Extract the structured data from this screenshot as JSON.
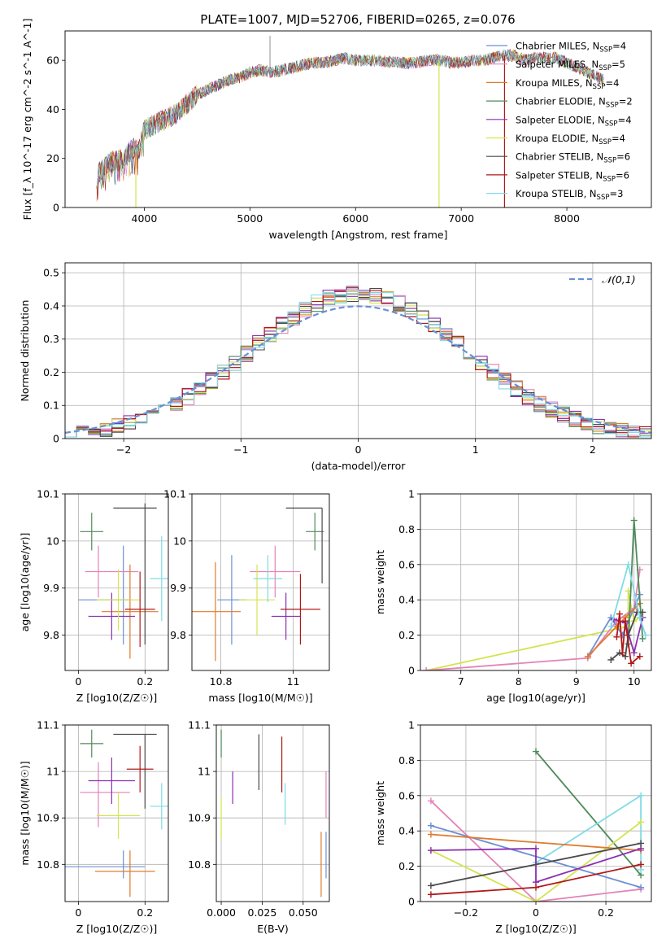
{
  "figure": {
    "title": "PLATE=1007, MJD=52706, FIBERID=0265, z=0.076"
  },
  "models": [
    {
      "id": "chab_miles",
      "label": "Chabrier MILES, N",
      "sub": "SSP",
      "n": "=4",
      "color": "#6b8fd6"
    },
    {
      "id": "salp_miles",
      "label": "Salpeter MILES, N",
      "sub": "SSP",
      "n": "=5",
      "color": "#e383b8"
    },
    {
      "id": "krou_miles",
      "label": "Kroupa MILES, N",
      "sub": "SSP",
      "n": "=4",
      "color": "#e07b2c"
    },
    {
      "id": "chab_elodie",
      "label": "Chabrier ELODIE, N",
      "sub": "SSP",
      "n": "=2",
      "color": "#4e8a5a"
    },
    {
      "id": "salp_elodie",
      "label": "Salpeter ELODIE, N",
      "sub": "SSP",
      "n": "=4",
      "color": "#8b2fb0"
    },
    {
      "id": "krou_elodie",
      "label": "Kroupa ELODIE, N",
      "sub": "SSP",
      "n": "=4",
      "color": "#d3e44e"
    },
    {
      "id": "chab_stelib",
      "label": "Chabrier STELIB, N",
      "sub": "SSP",
      "n": "=6",
      "color": "#4a4a4a"
    },
    {
      "id": "salp_stelib",
      "label": "Salpeter STELIB, N",
      "sub": "SSP",
      "n": "=6",
      "color": "#b01818"
    },
    {
      "id": "krou_stelib",
      "label": "Kroupa STELIB, N",
      "sub": "SSP",
      "n": "=3",
      "color": "#7fdbe6"
    }
  ],
  "chart_data": [
    {
      "type": "line",
      "panel": "spectrum",
      "xlabel": "wavelength [Angstrom, rest frame]",
      "ylabel": "Flux [f_λ 10^-17 erg cm^-2 s^-1 A^-1]",
      "xlim": [
        3250,
        8800
      ],
      "ylim": [
        0,
        72
      ],
      "xticks": [
        4000,
        5000,
        6000,
        7000,
        8000
      ],
      "yticks": [
        0,
        20,
        40,
        60
      ],
      "legend": "top-right",
      "grid": false,
      "continuum": [
        [
          3550,
          13
        ],
        [
          3650,
          18
        ],
        [
          3800,
          20
        ],
        [
          3900,
          24
        ],
        [
          3950,
          23
        ],
        [
          4000,
          32
        ],
        [
          4100,
          34
        ],
        [
          4200,
          36
        ],
        [
          4300,
          38
        ],
        [
          4400,
          42
        ],
        [
          4500,
          46
        ],
        [
          4600,
          48
        ],
        [
          4700,
          50
        ],
        [
          4800,
          52
        ],
        [
          4900,
          53
        ],
        [
          5000,
          55
        ],
        [
          5100,
          56
        ],
        [
          5200,
          55
        ],
        [
          5300,
          56
        ],
        [
          5400,
          57
        ],
        [
          5500,
          58
        ],
        [
          5600,
          59
        ],
        [
          5700,
          59
        ],
        [
          5800,
          60
        ],
        [
          5900,
          61
        ],
        [
          6000,
          60
        ],
        [
          6200,
          60
        ],
        [
          6400,
          59
        ],
        [
          6563,
          59
        ],
        [
          6700,
          60
        ],
        [
          6800,
          60
        ],
        [
          6900,
          59
        ],
        [
          7000,
          59
        ],
        [
          7100,
          60
        ],
        [
          7200,
          60
        ],
        [
          7300,
          61
        ],
        [
          7400,
          62
        ],
        [
          7500,
          62
        ],
        [
          7600,
          60
        ],
        [
          7700,
          61
        ],
        [
          7800,
          61
        ],
        [
          7900,
          61
        ],
        [
          8000,
          59
        ],
        [
          8100,
          57
        ],
        [
          8200,
          55
        ],
        [
          8300,
          53
        ],
        [
          8350,
          52
        ]
      ],
      "spikes": [
        {
          "x": 5190,
          "y": 70
        }
      ],
      "drops": [
        {
          "x": 3920,
          "model": "krou_elodie"
        },
        {
          "x": 6790,
          "model": "krou_elodie"
        },
        {
          "x": 7410,
          "model": "salp_stelib"
        }
      ]
    },
    {
      "type": "area",
      "panel": "residuals",
      "xlabel": "(data-model)/error",
      "ylabel": "Normed distribution",
      "xlim": [
        -2.5,
        2.5
      ],
      "ylim": [
        0,
        0.53
      ],
      "xticks": [
        -2,
        -1,
        0,
        1,
        2
      ],
      "yticks": [
        0.0,
        0.1,
        0.2,
        0.3,
        0.4,
        0.5
      ],
      "grid": true,
      "legend": "top-right",
      "reference": {
        "label": "𝒩(0,1)",
        "mu": 0,
        "sigma": 1,
        "color": "#6890d8"
      },
      "bin_width": 0.1
    },
    {
      "type": "scatter",
      "panel": "age_vs_Z",
      "xlabel": "Z [log10(Z/Z☉)]",
      "ylabel": "age [log10(age/yr)]",
      "xlim": [
        -0.04,
        0.27
      ],
      "ylim": [
        9.725,
        10.1
      ],
      "xticks": [
        0.0,
        0.2
      ],
      "yticks": [
        9.8,
        9.9,
        10.0,
        10.1
      ],
      "grid": true,
      "points": [
        {
          "model": "chab_miles",
          "x": 0.08,
          "xerr": 0.08,
          "y": 9.875,
          "yerr": 0.0
        },
        {
          "model": "chab_miles",
          "x": 0.135,
          "xerr": 0.0,
          "y": 9.885,
          "yerr": 0.105
        },
        {
          "model": "salp_miles",
          "x": 0.1,
          "xerr": 0.08,
          "y": 9.935,
          "yerr": 0.0
        },
        {
          "model": "salp_miles",
          "x": 0.06,
          "xerr": 0.0,
          "y": 9.935,
          "yerr": 0.055
        },
        {
          "model": "krou_miles",
          "x": 0.155,
          "xerr": 0.085,
          "y": 9.85,
          "yerr": 0.0
        },
        {
          "model": "krou_miles",
          "x": 0.155,
          "xerr": 0.0,
          "y": 9.85,
          "yerr": 0.1
        },
        {
          "model": "chab_elodie",
          "x": 0.04,
          "xerr": 0.035,
          "y": 10.02,
          "yerr": 0.04
        },
        {
          "model": "salp_elodie",
          "x": 0.1,
          "xerr": 0.07,
          "y": 9.84,
          "yerr": 0.05
        },
        {
          "model": "krou_elodie",
          "x": 0.12,
          "xerr": 0.065,
          "y": 9.875,
          "yerr": 0.065
        },
        {
          "model": "chab_stelib",
          "x": 0.2,
          "xerr": 0.0,
          "y": 9.93,
          "yerr": 0.15
        },
        {
          "model": "chab_stelib",
          "x": 0.17,
          "xerr": 0.065,
          "y": 10.07,
          "yerr": 0.0
        },
        {
          "model": "salp_stelib",
          "x": 0.185,
          "xerr": 0.045,
          "y": 9.855,
          "yerr": 0.08
        },
        {
          "model": "krou_stelib",
          "x": 0.25,
          "xerr": 0.035,
          "y": 9.92,
          "yerr": 0.09
        }
      ]
    },
    {
      "type": "scatter",
      "panel": "age_vs_mass",
      "xlabel": "mass [log10(M/M☉)]",
      "ylabel": "",
      "xlim": [
        10.72,
        11.1
      ],
      "ylim": [
        9.725,
        10.1
      ],
      "xticks": [
        10.8,
        11.0
      ],
      "yticks": [
        9.8,
        9.9,
        10.0,
        10.1
      ],
      "grid": true,
      "points": [
        {
          "model": "chab_miles",
          "x": 10.83,
          "xerr": 0.04,
          "y": 9.875,
          "yerr": 0.095
        },
        {
          "model": "salp_miles",
          "x": 10.95,
          "xerr": 0.07,
          "y": 9.935,
          "yerr": 0.055
        },
        {
          "model": "krou_miles",
          "x": 10.785,
          "xerr": 0.07,
          "y": 9.85,
          "yerr": 0.105
        },
        {
          "model": "chab_elodie",
          "x": 11.06,
          "xerr": 0.025,
          "y": 10.02,
          "yerr": 0.04
        },
        {
          "model": "salp_elodie",
          "x": 10.98,
          "xerr": 0.04,
          "y": 9.84,
          "yerr": 0.05
        },
        {
          "model": "krou_elodie",
          "x": 10.9,
          "xerr": 0.05,
          "y": 9.875,
          "yerr": 0.075
        },
        {
          "model": "chab_stelib",
          "x": 11.08,
          "xerr": 0.0,
          "y": 9.99,
          "yerr": 0.08
        },
        {
          "model": "chab_stelib",
          "x": 11.03,
          "xerr": 0.05,
          "y": 10.07,
          "yerr": 0.0
        },
        {
          "model": "salp_stelib",
          "x": 11.02,
          "xerr": 0.055,
          "y": 9.855,
          "yerr": 0.075
        },
        {
          "model": "krou_stelib",
          "x": 10.93,
          "xerr": 0.04,
          "y": 9.92,
          "yerr": 0.05
        }
      ]
    },
    {
      "type": "line",
      "panel": "weight_vs_age",
      "xlabel": "age  [log10(age/yr)]",
      "ylabel": "mass weight",
      "xlim": [
        6.3,
        10.3
      ],
      "ylim": [
        0,
        1.0
      ],
      "xticks": [
        7,
        8,
        9,
        10
      ],
      "yticks": [
        0.0,
        0.2,
        0.4,
        0.6,
        0.8,
        1.0
      ],
      "grid": true,
      "series": [
        {
          "model": "krou_elodie",
          "x": [
            6.4,
            9.9,
            9.9,
            10.0,
            10.1
          ],
          "y": [
            0.0,
            0.25,
            0.45,
            0.28,
            0.3
          ]
        },
        {
          "model": "salp_miles",
          "x": [
            6.4,
            9.2,
            9.7,
            10.0,
            10.1
          ],
          "y": [
            0.0,
            0.07,
            0.28,
            0.35,
            0.57
          ]
        },
        {
          "model": "chab_miles",
          "x": [
            9.2,
            9.6,
            9.8,
            10.1
          ],
          "y": [
            0.08,
            0.3,
            0.2,
            0.43
          ]
        },
        {
          "model": "krou_miles",
          "x": [
            9.2,
            9.7,
            9.85,
            10.1
          ],
          "y": [
            0.08,
            0.25,
            0.3,
            0.38
          ]
        },
        {
          "model": "chab_elodie",
          "x": [
            9.9,
            10.0,
            10.15
          ],
          "y": [
            0.15,
            0.85,
            0.18
          ]
        },
        {
          "model": "salp_elodie",
          "x": [
            9.65,
            9.85,
            10.0,
            10.15
          ],
          "y": [
            0.29,
            0.27,
            0.1,
            0.3
          ]
        },
        {
          "model": "chab_stelib",
          "x": [
            9.6,
            9.75,
            9.85,
            9.9,
            10.05,
            10.15
          ],
          "y": [
            0.06,
            0.1,
            0.08,
            0.2,
            0.33,
            0.33
          ]
        },
        {
          "model": "salp_stelib",
          "x": [
            9.7,
            9.75,
            9.8,
            9.85,
            9.95,
            10.1
          ],
          "y": [
            0.19,
            0.32,
            0.1,
            0.28,
            0.04,
            0.08
          ]
        },
        {
          "model": "krou_stelib",
          "x": [
            9.6,
            9.9,
            10.1,
            10.2
          ],
          "y": [
            0.25,
            0.6,
            0.3,
            0.2
          ]
        }
      ]
    },
    {
      "type": "scatter",
      "panel": "mass_vs_Z",
      "xlabel": "Z [log10(Z/Z☉)]",
      "ylabel": "mass [log10(M/M☉)]",
      "xlim": [
        -0.04,
        0.27
      ],
      "ylim": [
        10.72,
        11.1
      ],
      "xticks": [
        0.0,
        0.2
      ],
      "yticks": [
        10.8,
        10.9,
        11.0,
        11.1
      ],
      "grid": true,
      "points": [
        {
          "model": "chab_miles",
          "x": 0.08,
          "xerr": 0.12,
          "y": 10.795,
          "yerr": 0.0
        },
        {
          "model": "chab_miles",
          "x": 0.135,
          "xerr": 0.0,
          "y": 10.8,
          "yerr": 0.03
        },
        {
          "model": "salp_miles",
          "x": 0.08,
          "xerr": 0.075,
          "y": 10.955,
          "yerr": 0.0
        },
        {
          "model": "salp_miles",
          "x": 0.06,
          "xerr": 0.0,
          "y": 10.95,
          "yerr": 0.07
        },
        {
          "model": "krou_miles",
          "x": 0.14,
          "xerr": 0.09,
          "y": 10.785,
          "yerr": 0.0
        },
        {
          "model": "krou_miles",
          "x": 0.155,
          "xerr": 0.0,
          "y": 10.78,
          "yerr": 0.05
        },
        {
          "model": "chab_elodie",
          "x": 0.04,
          "xerr": 0.035,
          "y": 11.06,
          "yerr": 0.03
        },
        {
          "model": "salp_elodie",
          "x": 0.1,
          "xerr": 0.07,
          "y": 10.98,
          "yerr": 0.05
        },
        {
          "model": "krou_elodie",
          "x": 0.12,
          "xerr": 0.065,
          "y": 10.905,
          "yerr": 0.05
        },
        {
          "model": "chab_stelib",
          "x": 0.2,
          "xerr": 0.0,
          "y": 11.0,
          "yerr": 0.08
        },
        {
          "model": "chab_stelib",
          "x": 0.17,
          "xerr": 0.065,
          "y": 11.08,
          "yerr": 0.0
        },
        {
          "model": "salp_stelib",
          "x": 0.185,
          "xerr": 0.04,
          "y": 11.005,
          "yerr": 0.05
        },
        {
          "model": "krou_stelib",
          "x": 0.25,
          "xerr": 0.035,
          "y": 10.925,
          "yerr": 0.05
        }
      ]
    },
    {
      "type": "scatter",
      "panel": "mass_vs_ebv",
      "xlabel": "E(B-V)",
      "ylabel": "",
      "xlim": [
        -0.003,
        0.066
      ],
      "ylim": [
        10.72,
        11.1
      ],
      "xticks": [
        0.0,
        0.025,
        0.05
      ],
      "xticklabels": [
        "0.000",
        "0.025",
        "0.050"
      ],
      "yticks": [
        10.8,
        10.9,
        11.0,
        11.1
      ],
      "grid": true,
      "points": [
        {
          "model": "chab_elodie",
          "x": 0.0,
          "xerr": 0.0,
          "y": 11.06,
          "yerr": 0.03
        },
        {
          "model": "krou_elodie",
          "x": 0.0,
          "xerr": 0.0,
          "y": 10.9,
          "yerr": 0.045
        },
        {
          "model": "salp_elodie",
          "x": 0.007,
          "xerr": 0.0,
          "y": 10.965,
          "yerr": 0.035
        },
        {
          "model": "chab_stelib",
          "x": 0.023,
          "xerr": 0.0,
          "y": 11.02,
          "yerr": 0.06
        },
        {
          "model": "salp_stelib",
          "x": 0.037,
          "xerr": 0.0,
          "y": 11.015,
          "yerr": 0.06
        },
        {
          "model": "krou_stelib",
          "x": 0.039,
          "xerr": 0.0,
          "y": 10.93,
          "yerr": 0.045
        },
        {
          "model": "krou_miles",
          "x": 0.061,
          "xerr": 0.0,
          "y": 10.8,
          "yerr": 0.07
        },
        {
          "model": "salp_miles",
          "x": 0.064,
          "xerr": 0.0,
          "y": 10.95,
          "yerr": 0.05
        },
        {
          "model": "chab_miles",
          "x": 0.064,
          "xerr": 0.0,
          "y": 10.82,
          "yerr": 0.05
        }
      ]
    },
    {
      "type": "line",
      "panel": "weight_vs_Z",
      "xlabel": "Z [log10(Z/Z☉)]",
      "ylabel": "mass weight",
      "xlim": [
        -0.33,
        0.33
      ],
      "ylim": [
        0,
        1.0
      ],
      "xticks": [
        -0.2,
        0.0,
        0.2
      ],
      "yticks": [
        0.0,
        0.2,
        0.4,
        0.6,
        0.8,
        1.0
      ],
      "grid": true,
      "series": [
        {
          "model": "chab_elodie",
          "x": [
            0.0,
            0.3
          ],
          "y": [
            0.85,
            0.15
          ]
        },
        {
          "model": "krou_stelib",
          "x": [
            0.0,
            0.3,
            0.3
          ],
          "y": [
            0.22,
            0.6,
            0.18
          ]
        },
        {
          "model": "salp_miles",
          "x": [
            -0.3,
            0.0,
            0.3
          ],
          "y": [
            0.57,
            0.0,
            0.07
          ]
        },
        {
          "model": "krou_elodie",
          "x": [
            -0.3,
            0.0,
            0.3
          ],
          "y": [
            0.29,
            0.0,
            0.45
          ]
        },
        {
          "model": "chab_miles",
          "x": [
            -0.3,
            0.3
          ],
          "y": [
            0.43,
            0.08
          ]
        },
        {
          "model": "krou_miles",
          "x": [
            -0.3,
            0.3
          ],
          "y": [
            0.38,
            0.29
          ]
        },
        {
          "model": "salp_elodie",
          "x": [
            -0.3,
            0.0,
            0.0,
            0.3
          ],
          "y": [
            0.29,
            0.3,
            0.11,
            0.3
          ]
        },
        {
          "model": "chab_stelib",
          "x": [
            -0.3,
            0.3
          ],
          "y": [
            0.09,
            0.33
          ]
        },
        {
          "model": "salp_stelib",
          "x": [
            -0.3,
            0.0,
            0.3
          ],
          "y": [
            0.04,
            0.08,
            0.21
          ]
        }
      ]
    }
  ]
}
